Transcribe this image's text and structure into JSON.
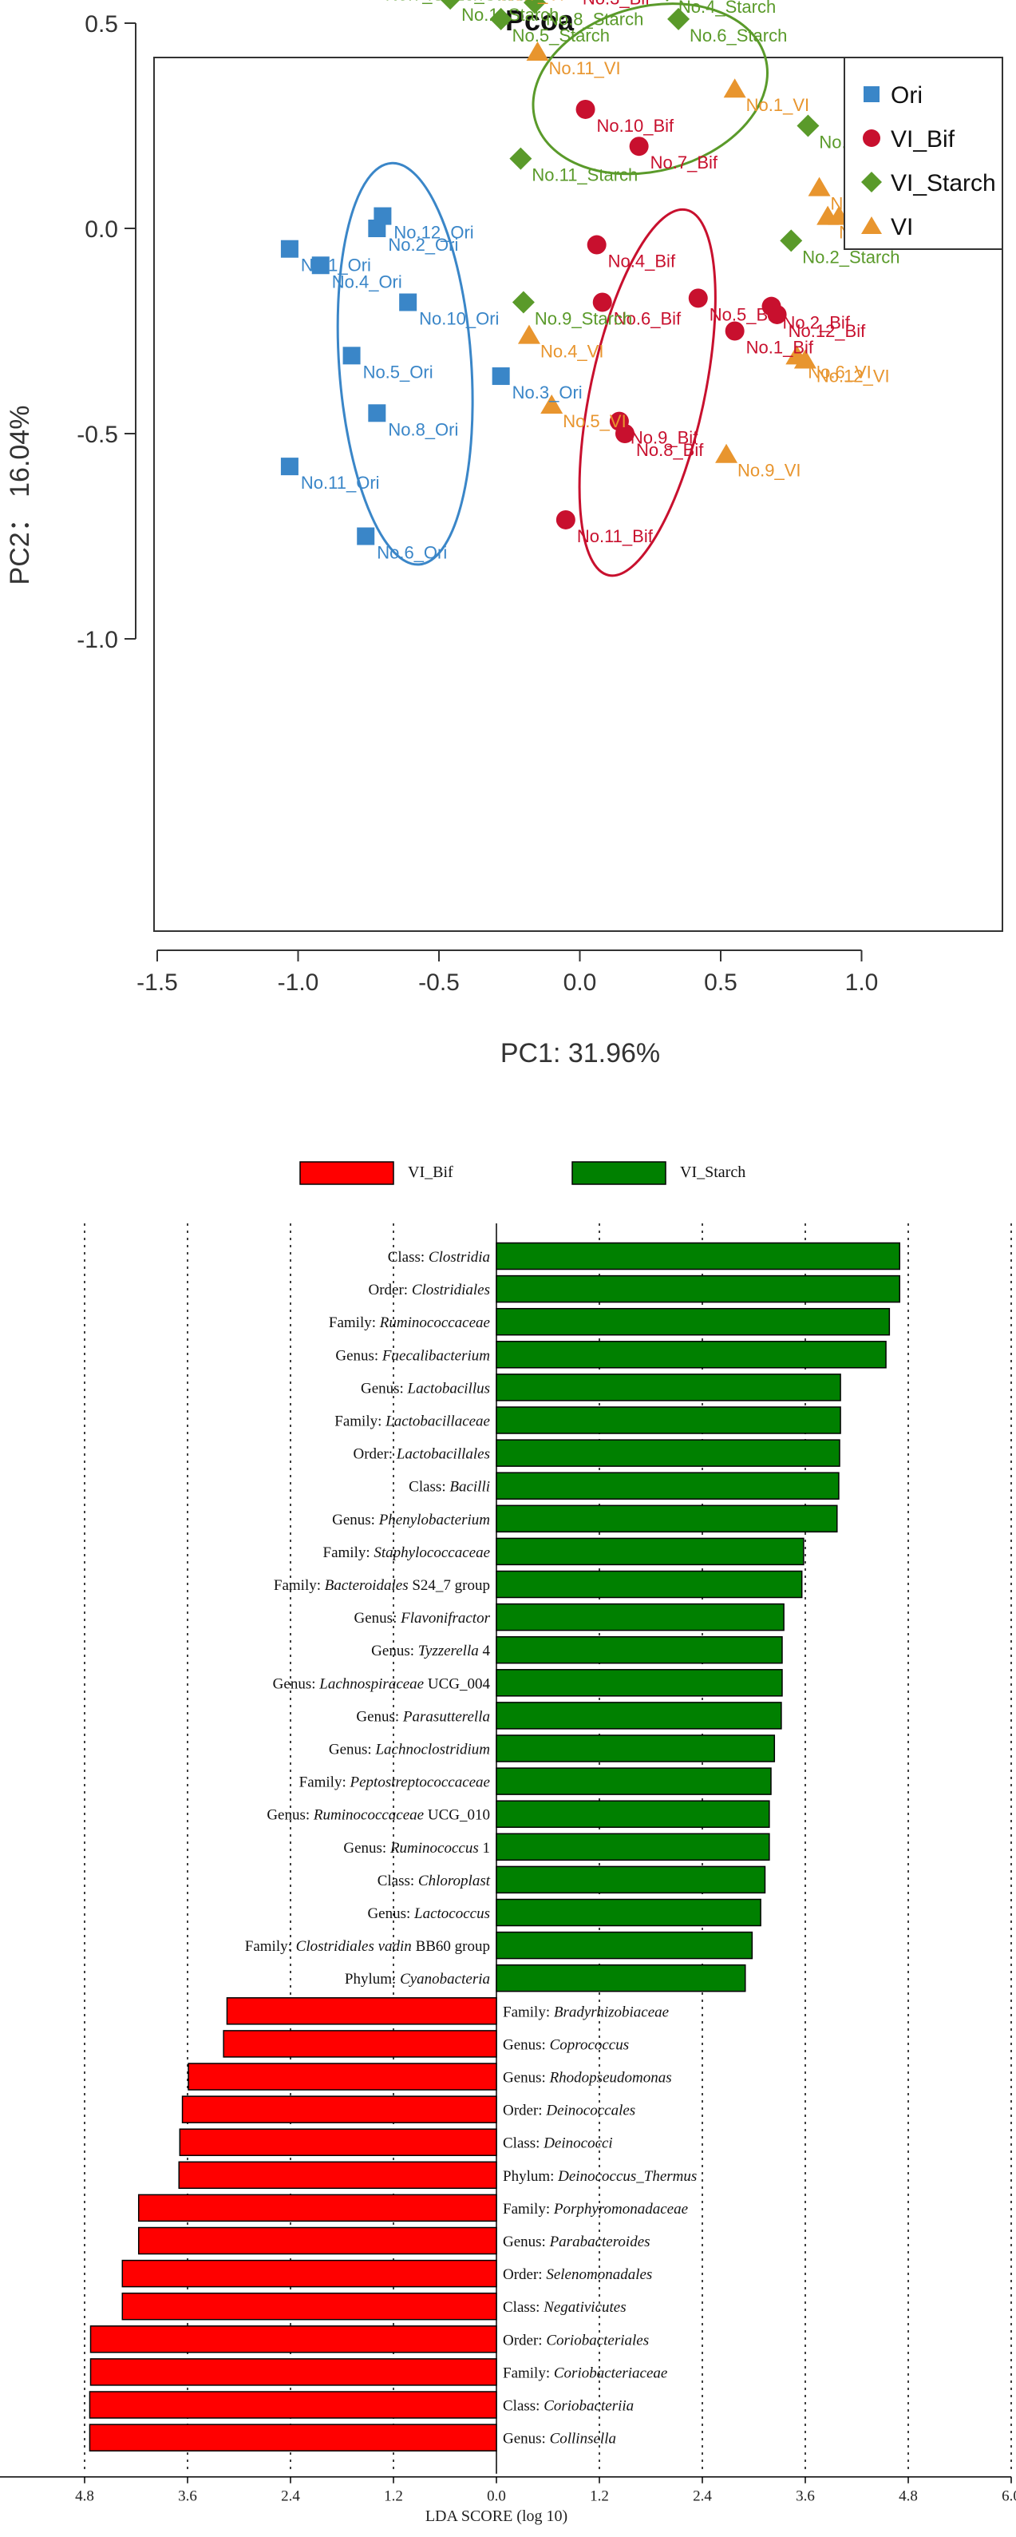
{
  "chart_data": [
    {
      "type": "scatter",
      "title": "Pcoa",
      "xlabel": "PC1: 31.96%",
      "ylabel": "PC2： 16.04%",
      "xlim": [
        -1.55,
        1.5
      ],
      "ylim": [
        -1.07,
        0.97
      ],
      "x_ticks": [
        -1.5,
        -1.0,
        -0.5,
        0.0,
        0.5,
        1.0
      ],
      "x_tick_labels": [
        "-1.5",
        "-1.0",
        "-0.5",
        "0.0",
        "0.5",
        "1.0"
      ],
      "y_ticks": [
        -1.0,
        -0.5,
        0.0,
        0.5
      ],
      "y_tick_labels": [
        "-1.0",
        "-0.5",
        "0.0",
        "0.5"
      ],
      "grid": false,
      "legend_position": "top-right",
      "series": [
        {
          "name": "Ori",
          "color": "#3a86c8",
          "marker": "square",
          "ellipse": {
            "cx": -0.62,
            "cy": -0.33,
            "rx": 0.51,
            "ry": 0.98,
            "angle": -4
          },
          "points": [
            {
              "label": "No.1_Ori",
              "x": -1.03,
              "y": -0.05
            },
            {
              "label": "No.2_Ori",
              "x": -0.72,
              "y": 0.0
            },
            {
              "label": "No.3_Ori",
              "x": -0.28,
              "y": -0.36
            },
            {
              "label": "No.4_Ori",
              "x": -0.92,
              "y": -0.09
            },
            {
              "label": "No.5_Ori",
              "x": -0.81,
              "y": -0.31
            },
            {
              "label": "No.6_Ori",
              "x": -0.76,
              "y": -0.75
            },
            {
              "label": "No.8_Ori",
              "x": -0.72,
              "y": -0.45
            },
            {
              "label": "No.10_Ori",
              "x": -0.61,
              "y": -0.18
            },
            {
              "label": "No.11_Ori",
              "x": -1.03,
              "y": -0.58
            },
            {
              "label": "No.12_Ori",
              "x": -0.7,
              "y": 0.03
            }
          ]
        },
        {
          "name": "VI_Bif",
          "color": "#c8102e",
          "marker": "circle",
          "ellipse": {
            "cx": 0.24,
            "cy": -0.4,
            "rx": 0.44,
            "ry": 0.91,
            "angle": 12
          },
          "points": [
            {
              "label": "No.1_Bif",
              "x": 0.55,
              "y": -0.25
            },
            {
              "label": "No.2_Bif",
              "x": 0.68,
              "y": -0.19
            },
            {
              "label": "No.3_Bif",
              "x": -0.03,
              "y": 0.6
            },
            {
              "label": "No.4_Bif",
              "x": 0.06,
              "y": -0.04
            },
            {
              "label": "No.5_Bif",
              "x": 0.42,
              "y": -0.17
            },
            {
              "label": "No.6_Bif",
              "x": 0.08,
              "y": -0.18
            },
            {
              "label": "No.7_Bif",
              "x": 0.21,
              "y": 0.2
            },
            {
              "label": "No.8_Bif",
              "x": 0.16,
              "y": -0.5
            },
            {
              "label": "No.9_Bif",
              "x": 0.14,
              "y": -0.47
            },
            {
              "label": "No.10_Bif",
              "x": 0.02,
              "y": 0.29
            },
            {
              "label": "No.11_Bif",
              "x": -0.05,
              "y": -0.71
            },
            {
              "label": "No.12_Bif",
              "x": 0.7,
              "y": -0.21
            }
          ]
        },
        {
          "name": "VI_Starch",
          "color": "#5a9a2a",
          "marker": "diamond",
          "ellipse": {
            "cx": 0.25,
            "cy": 0.34,
            "rx": 0.92,
            "ry": 0.4,
            "angle": -15
          },
          "points": [
            {
              "label": "No.1_Starch",
              "x": -0.46,
              "y": 0.56
            },
            {
              "label": "No.2_Starch",
              "x": 0.75,
              "y": -0.03
            },
            {
              "label": "No.3_Starch",
              "x": -0.19,
              "y": 0.63
            },
            {
              "label": "No.4_Starch",
              "x": 0.31,
              "y": 0.58
            },
            {
              "label": "No.5_Starch",
              "x": -0.28,
              "y": 0.51
            },
            {
              "label": "No.6_Starch",
              "x": 0.35,
              "y": 0.51
            },
            {
              "label": "No.7_Starch",
              "x": -0.73,
              "y": 0.61
            },
            {
              "label": "No.8_Starch",
              "x": -0.16,
              "y": 0.55
            },
            {
              "label": "No.9_Starch",
              "x": -0.2,
              "y": -0.18
            },
            {
              "label": "No.10_Starch",
              "x": -0.58,
              "y": 0.61
            },
            {
              "label": "No.11_Starch",
              "x": -0.21,
              "y": 0.17
            },
            {
              "label": "No.12_Starch",
              "x": 0.81,
              "y": 0.25
            }
          ]
        },
        {
          "name": "VI",
          "color": "#e8952e",
          "marker": "triangle",
          "points": [
            {
              "label": "No.1_VI",
              "x": 0.55,
              "y": 0.34
            },
            {
              "label": "No.3_VI",
              "x": 0.92,
              "y": 0.03
            },
            {
              "label": "No.4_VI",
              "x": -0.18,
              "y": -0.26
            },
            {
              "label": "No.5_VI",
              "x": -0.1,
              "y": -0.43
            },
            {
              "label": "No.6_VI",
              "x": 0.77,
              "y": -0.31
            },
            {
              "label": "No.7_VI",
              "x": -0.32,
              "y": 0.61
            },
            {
              "label": "No.8_VI",
              "x": 0.85,
              "y": 0.1
            },
            {
              "label": "No.9_VI",
              "x": 0.52,
              "y": -0.55
            },
            {
              "label": "No.10_VI",
              "x": 0.88,
              "y": 0.03
            },
            {
              "label": "No.11_VI",
              "x": -0.15,
              "y": 0.43
            },
            {
              "label": "No.12_VI",
              "x": 0.8,
              "y": -0.32
            }
          ]
        }
      ]
    },
    {
      "type": "bar",
      "orientation": "horizontal",
      "xlabel": "LDA SCORE (log 10)",
      "xlim": [
        -6.0,
        6.0
      ],
      "x_ticks": [
        -6.0,
        -4.8,
        -3.6,
        -2.4,
        -1.2,
        0.0,
        1.2,
        2.4,
        3.6,
        4.8,
        6.0
      ],
      "x_tick_labels": [
        "6.0",
        "4.8",
        "3.6",
        "2.4",
        "1.2",
        "0.0",
        "1.2",
        "2.4",
        "3.6",
        "4.8",
        "6.0"
      ],
      "grid": true,
      "legend_position": "top",
      "legend": [
        {
          "name": "VI_Bif",
          "color": "#ff0000"
        },
        {
          "name": "VI_Starch",
          "color": "#008000"
        }
      ],
      "bars": [
        {
          "rank": "Class",
          "taxon": "Clostridia",
          "suffix": "",
          "group": "VI_Starch",
          "value": 4.7
        },
        {
          "rank": "Order",
          "taxon": "Clostridiales",
          "suffix": "",
          "group": "VI_Starch",
          "value": 4.7
        },
        {
          "rank": "Family",
          "taxon": "Ruminococcaceae",
          "suffix": "",
          "group": "VI_Starch",
          "value": 4.58
        },
        {
          "rank": "Genus",
          "taxon": "Faecalibacterium",
          "suffix": "",
          "group": "VI_Starch",
          "value": 4.54
        },
        {
          "rank": "Genus",
          "taxon": "Lactobacillus",
          "suffix": "",
          "group": "VI_Starch",
          "value": 4.01
        },
        {
          "rank": "Family",
          "taxon": "Lactobacillaceae",
          "suffix": "",
          "group": "VI_Starch",
          "value": 4.01
        },
        {
          "rank": "Order",
          "taxon": "Lactobacillales",
          "suffix": "",
          "group": "VI_Starch",
          "value": 4.0
        },
        {
          "rank": "Class",
          "taxon": "Bacilli",
          "suffix": "",
          "group": "VI_Starch",
          "value": 3.99
        },
        {
          "rank": "Genus",
          "taxon": "Phenylobacterium",
          "suffix": "",
          "group": "VI_Starch",
          "value": 3.97
        },
        {
          "rank": "Family",
          "taxon": "Staphylococcaceae",
          "suffix": "",
          "group": "VI_Starch",
          "value": 3.58
        },
        {
          "rank": "Family",
          "taxon": "Bacteroidales",
          "suffix": " S24_7 group",
          "group": "VI_Starch",
          "value": 3.56
        },
        {
          "rank": "Genus",
          "taxon": "Flavonifractor",
          "suffix": "",
          "group": "VI_Starch",
          "value": 3.35
        },
        {
          "rank": "Genus",
          "taxon": "Tyzzerella",
          "suffix": " 4",
          "group": "VI_Starch",
          "value": 3.33
        },
        {
          "rank": "Genus",
          "taxon": "Lachnospiraceae",
          "suffix": " UCG_004",
          "group": "VI_Starch",
          "value": 3.33
        },
        {
          "rank": "Genus",
          "taxon": "Parasutterella",
          "suffix": "",
          "group": "VI_Starch",
          "value": 3.32
        },
        {
          "rank": "Genus",
          "taxon": "Lachnoclostridium",
          "suffix": "",
          "group": "VI_Starch",
          "value": 3.24
        },
        {
          "rank": "Family",
          "taxon": "Peptostreptococcaceae",
          "suffix": "",
          "group": "VI_Starch",
          "value": 3.2
        },
        {
          "rank": "Genus",
          "taxon": "Ruminococcaceae",
          "suffix": " UCG_010",
          "group": "VI_Starch",
          "value": 3.18
        },
        {
          "rank": "Genus",
          "taxon": "Ruminococcus",
          "suffix": " 1",
          "group": "VI_Starch",
          "value": 3.18
        },
        {
          "rank": "Class",
          "taxon": "Chloroplast",
          "suffix": "",
          "group": "VI_Starch",
          "value": 3.13
        },
        {
          "rank": "Genus",
          "taxon": "Lactococcus",
          "suffix": "",
          "group": "VI_Starch",
          "value": 3.08
        },
        {
          "rank": "Family",
          "taxon": "Clostridiales vadin",
          "suffix": " BB60 group",
          "group": "VI_Starch",
          "value": 2.98
        },
        {
          "rank": "Phylum",
          "taxon": "Cyanobacteria",
          "suffix": "",
          "group": "VI_Starch",
          "value": 2.9
        },
        {
          "rank": "Family",
          "taxon": "Bradyrhizobiaceae",
          "suffix": "",
          "group": "VI_Bif",
          "value": 3.14
        },
        {
          "rank": "Genus",
          "taxon": "Coprococcus",
          "suffix": "",
          "group": "VI_Bif",
          "value": 3.18
        },
        {
          "rank": "Genus",
          "taxon": "Rhodopseudomonas",
          "suffix": "",
          "group": "VI_Bif",
          "value": 3.59
        },
        {
          "rank": "Order",
          "taxon": "Deinococcales",
          "suffix": "",
          "group": "VI_Bif",
          "value": 3.66
        },
        {
          "rank": "Class",
          "taxon": "Deinococci",
          "suffix": "",
          "group": "VI_Bif",
          "value": 3.69
        },
        {
          "rank": "Phylum",
          "taxon": "Deinococcus_Thermus",
          "suffix": "",
          "group": "VI_Bif",
          "value": 3.7
        },
        {
          "rank": "Family",
          "taxon": "Porphyromonadaceae",
          "suffix": "",
          "group": "VI_Bif",
          "value": 4.17
        },
        {
          "rank": "Genus",
          "taxon": "Parabacteroides",
          "suffix": "",
          "group": "VI_Bif",
          "value": 4.17
        },
        {
          "rank": "Order",
          "taxon": "Selenomonadales",
          "suffix": "",
          "group": "VI_Bif",
          "value": 4.36
        },
        {
          "rank": "Class",
          "taxon": "Negativicutes",
          "suffix": "",
          "group": "VI_Bif",
          "value": 4.36
        },
        {
          "rank": "Order",
          "taxon": "Coriobacteriales",
          "suffix": "",
          "group": "VI_Bif",
          "value": 4.73
        },
        {
          "rank": "Family",
          "taxon": "Coriobacteriaceae",
          "suffix": "",
          "group": "VI_Bif",
          "value": 4.73
        },
        {
          "rank": "Class",
          "taxon": "Coriobacteriia",
          "suffix": "",
          "group": "VI_Bif",
          "value": 4.74
        },
        {
          "rank": "Genus",
          "taxon": "Collinsella",
          "suffix": "",
          "group": "VI_Bif",
          "value": 4.74
        }
      ]
    }
  ]
}
